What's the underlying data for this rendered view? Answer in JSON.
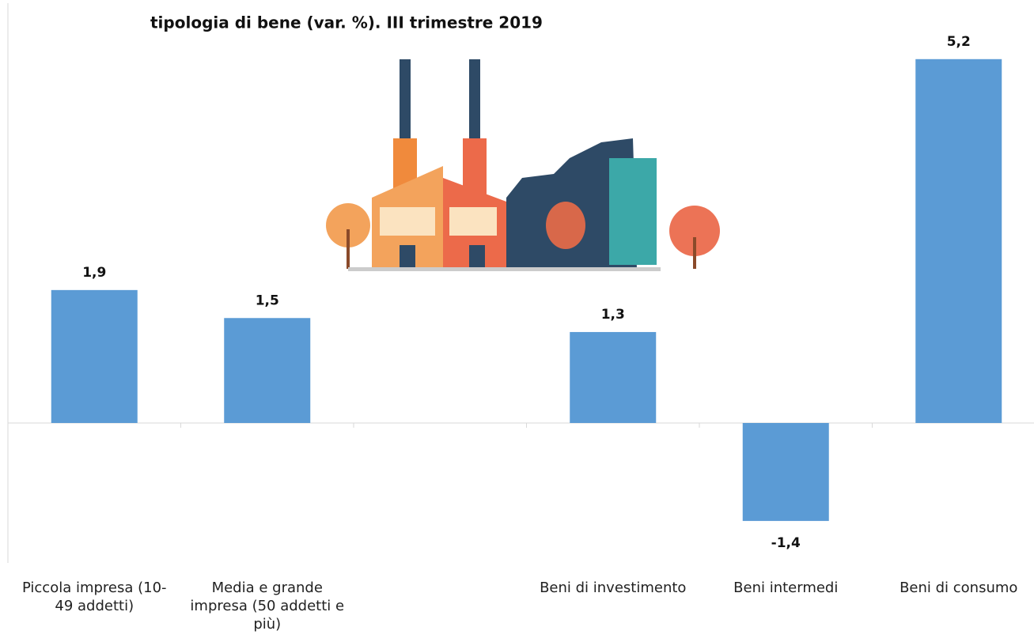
{
  "chart_data": {
    "type": "bar",
    "title": "tipologia di bene (var. %). III trimestre 2019",
    "categories": [
      "Piccola impresa (10-49 addetti)",
      "Media e grande impresa (50 addetti e più)",
      null,
      "Beni di investimento",
      "Beni intermedi",
      "Beni di consumo"
    ],
    "values": [
      1.9,
      1.5,
      null,
      1.3,
      -1.4,
      5.2
    ],
    "value_labels": [
      "1,9",
      "1,5",
      null,
      "1,3",
      "-1,4",
      "5,2"
    ],
    "color": "#5b9bd5",
    "ylim": [
      -2,
      6
    ]
  }
}
